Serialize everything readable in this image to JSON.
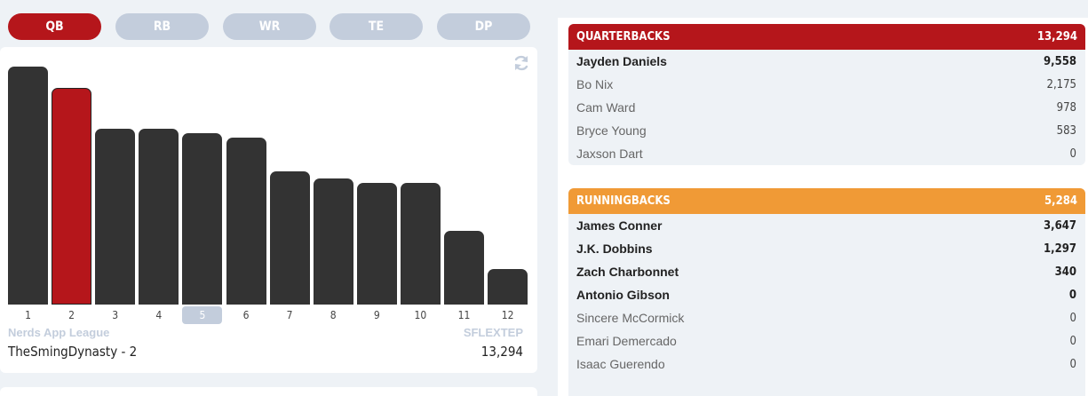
{
  "tabs": [
    {
      "label": "QB",
      "active": true
    },
    {
      "label": "RB",
      "active": false
    },
    {
      "label": "WR",
      "active": false
    },
    {
      "label": "TE",
      "active": false
    },
    {
      "label": "DP",
      "active": false
    }
  ],
  "colors": {
    "accent": "#b5161b",
    "tab_inactive": "#c3cddc",
    "bar": "#333333",
    "qb_header": "#b5161b",
    "rb_header": "#f09a36"
  },
  "chart_data": {
    "type": "bar",
    "categories": [
      "1",
      "2",
      "3",
      "4",
      "5",
      "6",
      "7",
      "8",
      "9",
      "10",
      "11",
      "12"
    ],
    "values": [
      100,
      91,
      74,
      74,
      72,
      70,
      56,
      53,
      51,
      51,
      31,
      15
    ],
    "highlight_index": 1,
    "selected_label_index": 4,
    "ylim": [
      0,
      100
    ]
  },
  "refresh_icon": "refresh-icon",
  "league": {
    "name": "Nerds App League",
    "scoring": "SFLEXTEP",
    "team_name": "TheSmingDynasty - 2",
    "team_total": "13,294"
  },
  "groups": [
    {
      "title": "QUARTERBACKS",
      "total": "13,294",
      "color": "#b5161b",
      "players": [
        {
          "name": "Jayden Daniels",
          "value": "9,558",
          "starter": true
        },
        {
          "name": "Bo Nix",
          "value": "2,175",
          "starter": false
        },
        {
          "name": "Cam Ward",
          "value": "978",
          "starter": false
        },
        {
          "name": "Bryce Young",
          "value": "583",
          "starter": false
        },
        {
          "name": "Jaxson Dart",
          "value": "0",
          "starter": false
        }
      ]
    },
    {
      "title": "RUNNINGBACKS",
      "total": "5,284",
      "color": "#f09a36",
      "players": [
        {
          "name": "James Conner",
          "value": "3,647",
          "starter": true
        },
        {
          "name": "J.K. Dobbins",
          "value": "1,297",
          "starter": true
        },
        {
          "name": "Zach Charbonnet",
          "value": "340",
          "starter": true
        },
        {
          "name": "Antonio Gibson",
          "value": "0",
          "starter": true
        },
        {
          "name": "Sincere McCormick",
          "value": "0",
          "starter": false
        },
        {
          "name": "Emari Demercado",
          "value": "0",
          "starter": false
        },
        {
          "name": "Isaac Guerendo",
          "value": "0",
          "starter": false
        }
      ]
    }
  ]
}
